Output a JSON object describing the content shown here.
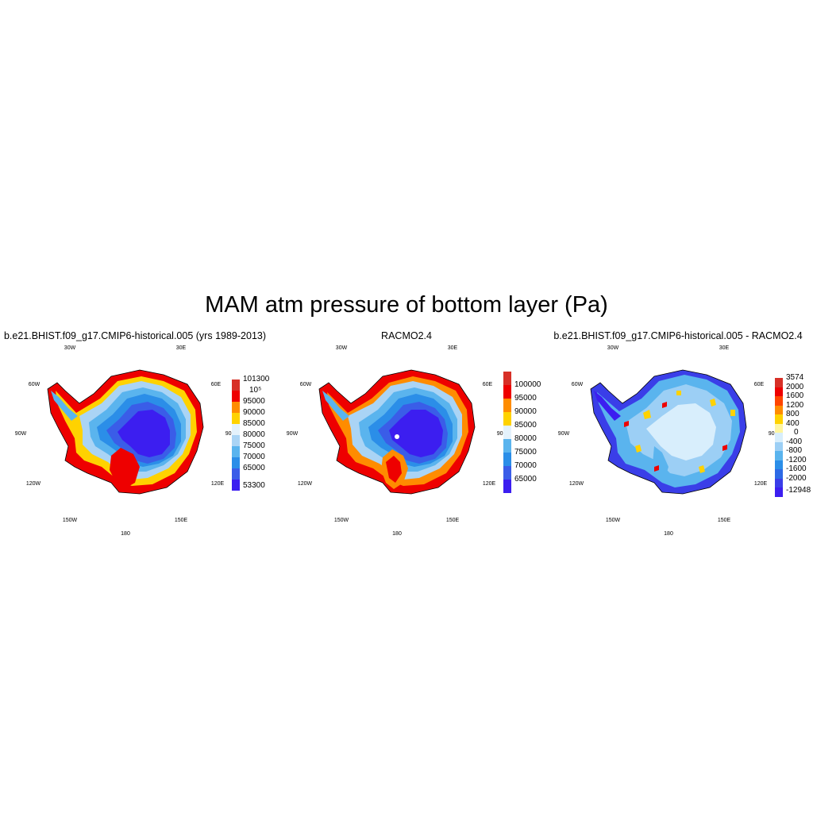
{
  "title": "MAM atm pressure of bottom layer (Pa)",
  "lon_labels": [
    "30W",
    "30E",
    "60W",
    "60E",
    "90W",
    "90E",
    "120W",
    "120E",
    "150W",
    "150E",
    "180"
  ],
  "panels": [
    {
      "title": "b.e21.BHIST.f09_g17.CMIP6-historical.005 (yrs 1989-2013)",
      "colorbar_labels": [
        "101300",
        "10⁵",
        "95000",
        "90000",
        "85000",
        "80000",
        "75000",
        "70000",
        "65000",
        "53300"
      ],
      "colors": [
        "#d73027",
        "#ee0000",
        "#ff8c00",
        "#ffd200",
        "#ffffff",
        "#aad4f5",
        "#5ab4ee",
        "#2b8ee8",
        "#3a5de8",
        "#3c1ef0"
      ]
    },
    {
      "title": "RACMO2.4",
      "colorbar_labels": [
        "100000",
        "95000",
        "90000",
        "85000",
        "80000",
        "75000",
        "70000",
        "65000"
      ],
      "colors": [
        "#d73027",
        "#ee0000",
        "#ff8c00",
        "#ffd200",
        "#ffffff",
        "#aad4f5",
        "#5ab4ee",
        "#2b8ee8",
        "#3a5de8",
        "#3c1ef0"
      ]
    },
    {
      "title": "b.e21.BHIST.f09_g17.CMIP6-historical.005 - RACMO2.4",
      "colorbar_labels": [
        "3574",
        "2000",
        "1600",
        "1200",
        "800",
        "400",
        "0",
        "-400",
        "-800",
        "-1200",
        "-1600",
        "-2000",
        "-12948"
      ],
      "colors": [
        "#d73027",
        "#ee0000",
        "#ff4500",
        "#ff8c00",
        "#ffd200",
        "#fff6a0",
        "#d8eefc",
        "#9ccff5",
        "#5ab4ee",
        "#2b8ee8",
        "#2d6ae6",
        "#3a3ee8",
        "#3c1ef0"
      ]
    }
  ]
}
